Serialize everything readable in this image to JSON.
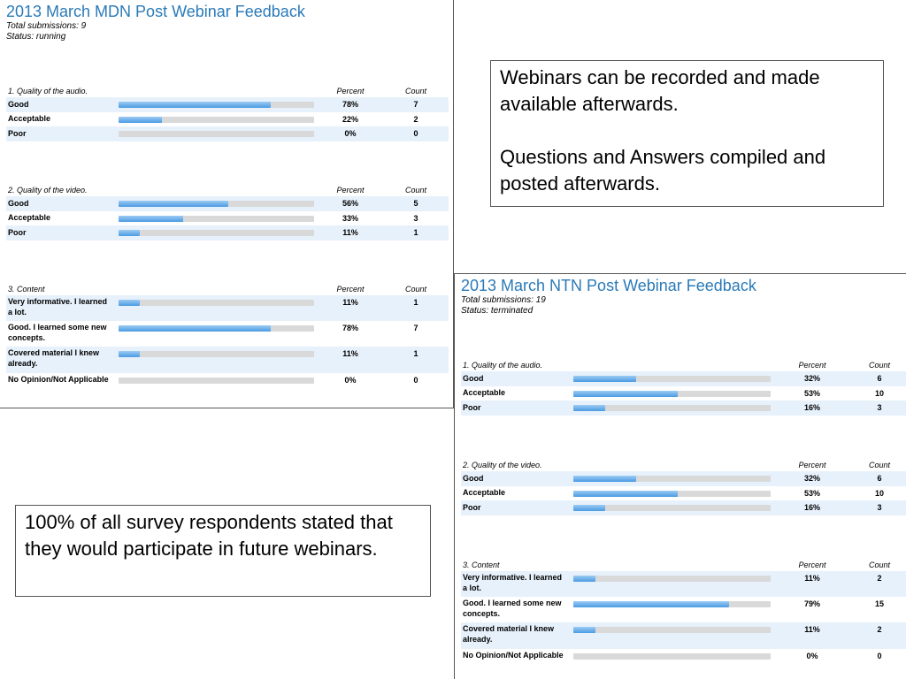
{
  "surveys": [
    {
      "title": "2013 March MDN Post Webinar Feedback",
      "total_submissions": "Total submissions: 9",
      "status": "Status: running",
      "questions": [
        {
          "label": "1. Quality of the audio.",
          "percent_header": "Percent",
          "count_header": "Count",
          "answers": [
            {
              "label": "Good",
              "percent": "78%",
              "count": "7",
              "fraction": 0.78
            },
            {
              "label": "Acceptable",
              "percent": "22%",
              "count": "2",
              "fraction": 0.22
            },
            {
              "label": "Poor",
              "percent": "0%",
              "count": "0",
              "fraction": 0
            }
          ]
        },
        {
          "label": "2. Quality of the video.",
          "percent_header": "Percent",
          "count_header": "Count",
          "answers": [
            {
              "label": "Good",
              "percent": "56%",
              "count": "5",
              "fraction": 0.56
            },
            {
              "label": "Acceptable",
              "percent": "33%",
              "count": "3",
              "fraction": 0.33
            },
            {
              "label": "Poor",
              "percent": "11%",
              "count": "1",
              "fraction": 0.11
            }
          ]
        },
        {
          "label": "3. Content",
          "percent_header": "Percent",
          "count_header": "Count",
          "answers": [
            {
              "label": "Very informative. I learned a lot.",
              "percent": "11%",
              "count": "1",
              "fraction": 0.11
            },
            {
              "label": "Good. I learned some new concepts.",
              "percent": "78%",
              "count": "7",
              "fraction": 0.78
            },
            {
              "label": "Covered material I knew already.",
              "percent": "11%",
              "count": "1",
              "fraction": 0.11
            },
            {
              "label": "No Opinion/Not Applicable",
              "percent": "0%",
              "count": "0",
              "fraction": 0
            }
          ]
        }
      ]
    },
    {
      "title": "2013 March NTN Post Webinar Feedback",
      "total_submissions": "Total submissions: 19",
      "status": "Status: terminated",
      "questions": [
        {
          "label": "1. Quality of the audio.",
          "percent_header": "Percent",
          "count_header": "Count",
          "answers": [
            {
              "label": "Good",
              "percent": "32%",
              "count": "6",
              "fraction": 0.32
            },
            {
              "label": "Acceptable",
              "percent": "53%",
              "count": "10",
              "fraction": 0.53
            },
            {
              "label": "Poor",
              "percent": "16%",
              "count": "3",
              "fraction": 0.16
            }
          ]
        },
        {
          "label": "2. Quality of the video.",
          "percent_header": "Percent",
          "count_header": "Count",
          "answers": [
            {
              "label": "Good",
              "percent": "32%",
              "count": "6",
              "fraction": 0.32
            },
            {
              "label": "Acceptable",
              "percent": "53%",
              "count": "10",
              "fraction": 0.53
            },
            {
              "label": "Poor",
              "percent": "16%",
              "count": "3",
              "fraction": 0.16
            }
          ]
        },
        {
          "label": "3. Content",
          "percent_header": "Percent",
          "count_header": "Count",
          "answers": [
            {
              "label": "Very informative. I learned a lot.",
              "percent": "11%",
              "count": "2",
              "fraction": 0.11
            },
            {
              "label": "Good. I learned some new concepts.",
              "percent": "79%",
              "count": "15",
              "fraction": 0.79
            },
            {
              "label": "Covered material I knew already.",
              "percent": "11%",
              "count": "2",
              "fraction": 0.11
            },
            {
              "label": "No Opinion/Not Applicable",
              "percent": "0%",
              "count": "0",
              "fraction": 0
            }
          ]
        }
      ]
    }
  ],
  "notes": {
    "webinars": {
      "line1": "Webinars can be recorded and made available afterwards.",
      "line2": "Questions and Answers compiled and posted afterwards."
    },
    "respondents": "100% of all survey respondents stated that they would participate in future webinars."
  },
  "colors": {
    "title": "#2a7ab8",
    "row_shade": "#e7f1fb",
    "bar_fill": "#4b9be2",
    "bar_track": "#d9d9d9"
  }
}
